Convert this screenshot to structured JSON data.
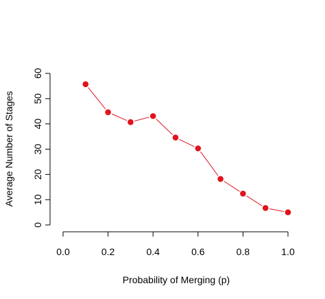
{
  "chart_data": {
    "type": "line",
    "title": "",
    "xlabel": "Probability of Merging (p)",
    "ylabel": "Average Number of Stages",
    "xlim": [
      0.0,
      1.0
    ],
    "ylim": [
      0,
      60
    ],
    "x_ticks": [
      0.0,
      0.2,
      0.4,
      0.6,
      0.8,
      1.0
    ],
    "x_tick_labels": [
      "0.0",
      "0.2",
      "0.4",
      "0.6",
      "0.8",
      "1.0"
    ],
    "y_ticks": [
      0,
      10,
      20,
      30,
      40,
      50,
      60
    ],
    "y_tick_labels": [
      "0",
      "10",
      "20",
      "30",
      "40",
      "50",
      "60"
    ],
    "grid": false,
    "legend": "none",
    "series": [
      {
        "color": "#e0141c",
        "marker": "filled-circle",
        "x": [
          0.1,
          0.2,
          0.3,
          0.4,
          0.5,
          0.6,
          0.7,
          0.8,
          0.9,
          1.0
        ],
        "y": [
          55.7,
          44.6,
          40.7,
          43.1,
          34.6,
          30.3,
          18.2,
          12.4,
          6.7,
          5.0
        ]
      }
    ]
  }
}
